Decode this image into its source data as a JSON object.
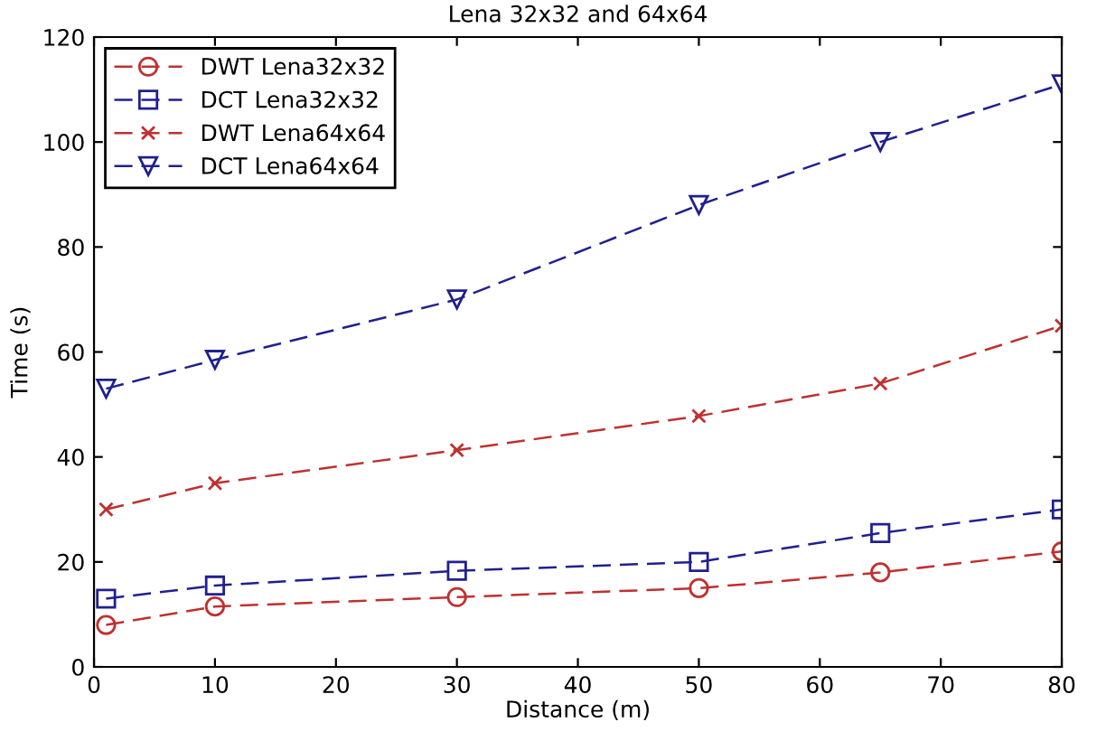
{
  "chart_data": {
    "type": "line",
    "title": "Lena 32x32 and 64x64",
    "xlabel": "Distance (m)",
    "ylabel": "Time (s)",
    "x": [
      1,
      10,
      30,
      50,
      65,
      80
    ],
    "series": [
      {
        "name": "DWT Lena32x32",
        "color": "#c03030",
        "marker": "circle",
        "values": [
          8,
          11.5,
          13.3,
          15,
          18,
          22
        ]
      },
      {
        "name": "DCT Lena32x32",
        "color": "#20208f",
        "marker": "square",
        "values": [
          13,
          15.5,
          18.3,
          20,
          25.5,
          30
        ]
      },
      {
        "name": "DWT Lena64x64",
        "color": "#c03030",
        "marker": "cross",
        "values": [
          30,
          35,
          41.3,
          47.8,
          54,
          65
        ]
      },
      {
        "name": "DCT Lena64x64",
        "color": "#20208f",
        "marker": "triangle",
        "values": [
          53,
          58.5,
          70,
          88,
          100,
          111
        ]
      }
    ],
    "line_style": "dashed",
    "xlim": [
      0,
      80
    ],
    "ylim": [
      0,
      120
    ],
    "xticks": [
      0,
      10,
      20,
      30,
      40,
      50,
      60,
      70,
      80
    ],
    "yticks": [
      0,
      20,
      40,
      60,
      80,
      100,
      120
    ],
    "grid": false,
    "legend": "top left"
  }
}
